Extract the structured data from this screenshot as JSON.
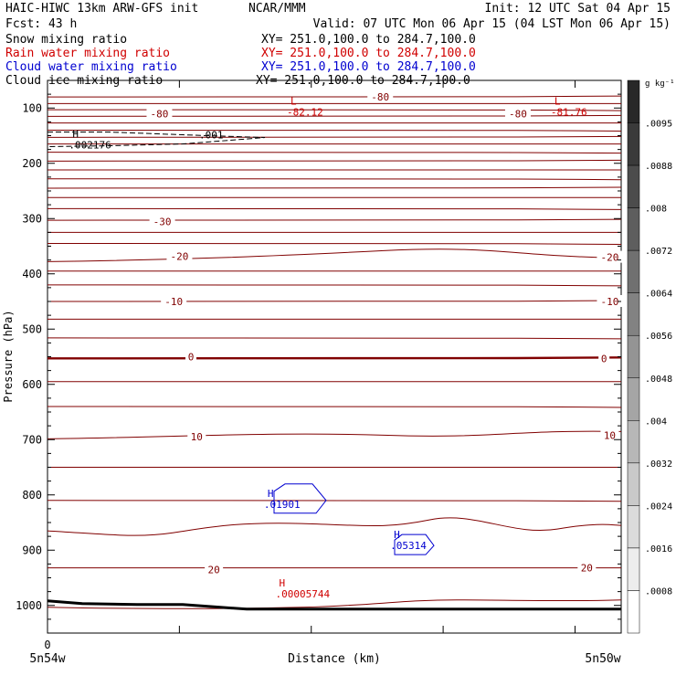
{
  "header": {
    "title_left": "HAIC-HIWC 13km ARW-GFS init",
    "title_mid": "NCAR/MMM",
    "init": "Init: 12 UTC Sat 04 Apr 15",
    "fcst": "Fcst:   43 h",
    "valid": "Valid: 07 UTC Mon 06 Apr 15 (04 LST Mon 06 Apr 15)"
  },
  "fields": [
    {
      "label": "Snow mixing ratio",
      "xy": "XY= 251.0,100.0 to 284.7,100.0",
      "color": "#000000"
    },
    {
      "label": "Rain water mixing ratio",
      "xy": "XY= 251.0,100.0 to 284.7,100.0",
      "color": "#d00000"
    },
    {
      "label": "Cloud water mixing ratio",
      "xy": "XY= 251.0,100.0 to 284.7,100.0",
      "color": "#0000d0"
    },
    {
      "label": "Cloud ice mixing ratio",
      "xy": "XY= 251.0,100.0 to 284.7,100.0",
      "color": "#000000"
    }
  ],
  "colorbar": {
    "unit": "g kg⁻¹",
    "ticks": [
      ".0095",
      ".0088",
      ".008",
      ".0072",
      ".0064",
      ".0056",
      ".0048",
      ".004",
      ".0032",
      ".0024",
      ".0016",
      ".0008"
    ]
  },
  "chart_data": {
    "type": "line",
    "title": "",
    "xlabel": "Distance (km)",
    "ylabel": "Pressure (hPa)",
    "x_ticks": [
      "0"
    ],
    "x_endpoints": {
      "left": "5n54w",
      "right": "5n50w"
    },
    "ylim": [
      1050,
      50
    ],
    "y_ticks": [
      100,
      200,
      300,
      400,
      500,
      600,
      700,
      800,
      900,
      1000
    ],
    "contour_color": "#800000",
    "temperature_contour_labels": [
      {
        "text": "-80",
        "x": 0.195,
        "p": 110
      },
      {
        "text": "-80",
        "x": 0.58,
        "p": 80
      },
      {
        "text": "-80",
        "x": 0.82,
        "p": 110
      },
      {
        "text": "-30",
        "x": 0.2,
        "p": 305
      },
      {
        "text": "-20",
        "x": 0.23,
        "p": 368
      },
      {
        "text": "-20",
        "x": 0.98,
        "p": 370
      },
      {
        "text": "-10",
        "x": 0.22,
        "p": 450
      },
      {
        "text": "-10",
        "x": 0.98,
        "p": 450
      },
      {
        "text": "0",
        "x": 0.25,
        "p": 550
      },
      {
        "text": "0",
        "x": 0.97,
        "p": 553
      },
      {
        "text": "10",
        "x": 0.26,
        "p": 695
      },
      {
        "text": "10",
        "x": 0.98,
        "p": 692
      },
      {
        "text": "20",
        "x": 0.29,
        "p": 935
      },
      {
        "text": "20",
        "x": 0.94,
        "p": 932
      }
    ],
    "extrema": [
      {
        "kind": "L",
        "value": "-82.12",
        "x": 0.43,
        "p": 100,
        "color": "#d00000"
      },
      {
        "kind": "L",
        "value": "-81.76",
        "x": 0.89,
        "p": 100,
        "color": "#d00000"
      },
      {
        "kind": "H",
        "value": ".002176",
        "x": 0.05,
        "p": 160,
        "color": "#000000"
      },
      {
        "kind": "H",
        "value": ".01901",
        "x": 0.39,
        "p": 810,
        "color": "#0000d0"
      },
      {
        "kind": "H",
        "value": ".05314",
        "x": 0.61,
        "p": 885,
        "color": "#0000d0"
      },
      {
        "kind": "H",
        "value": ".00005744",
        "x": 0.41,
        "p": 972,
        "color": "#d00000"
      }
    ],
    "cloud_ice_label": ".001",
    "terrain_color": "#000000"
  }
}
